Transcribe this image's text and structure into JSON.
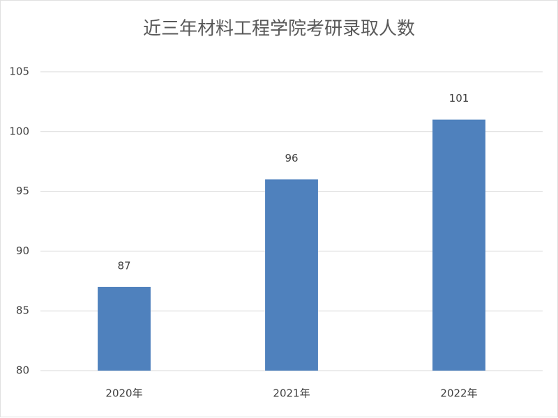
{
  "chart_data": {
    "type": "bar",
    "title": "近三年材料工程学院考研录取人数",
    "categories": [
      "2020年",
      "2021年",
      "2022年"
    ],
    "values": [
      87,
      96,
      101
    ],
    "color": "#4f81bd",
    "ylim": [
      80,
      105
    ],
    "yticks": [
      80,
      85,
      90,
      95,
      100,
      105
    ],
    "grid": true
  }
}
